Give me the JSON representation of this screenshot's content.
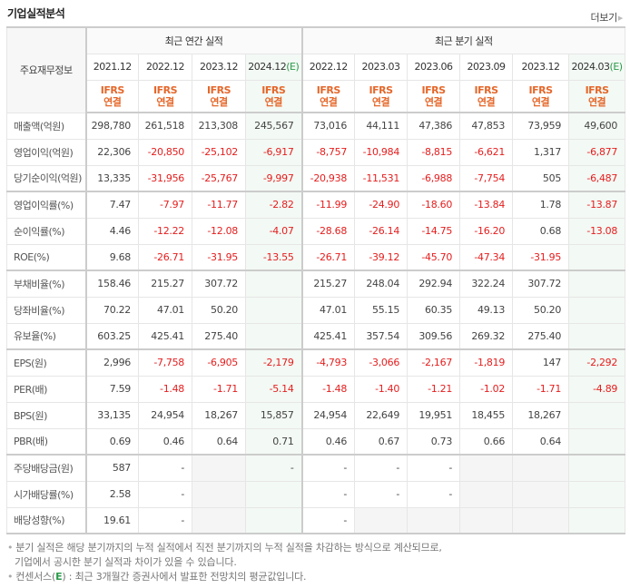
{
  "header": {
    "title": "기업실적분석",
    "more_label": "더보기",
    "more_icon": "triangle-right-icon"
  },
  "table": {
    "row_header_label": "주요재무정보",
    "groups": {
      "annual": "최근 연간 실적",
      "quarterly": "최근 분기 실적"
    },
    "annual_periods": [
      {
        "label": "2021.12",
        "estimate": false
      },
      {
        "label": "2022.12",
        "estimate": false
      },
      {
        "label": "2023.12",
        "estimate": false
      },
      {
        "label": "2024.12",
        "estimate": true,
        "estimate_mark": "(E)"
      }
    ],
    "quarterly_periods": [
      {
        "label": "2022.12",
        "estimate": false
      },
      {
        "label": "2023.03",
        "estimate": false
      },
      {
        "label": "2023.06",
        "estimate": false
      },
      {
        "label": "2023.09",
        "estimate": false
      },
      {
        "label": "2023.12",
        "estimate": false
      },
      {
        "label": "2024.03",
        "estimate": true,
        "estimate_mark": "(E)"
      }
    ],
    "accounting": {
      "line1": "IFRS",
      "line2": "연결"
    },
    "rows": [
      {
        "label": "매출액(억원)",
        "group_start": false,
        "values": [
          "298,780",
          "261,518",
          "213,308",
          "245,567",
          "73,016",
          "44,111",
          "47,386",
          "47,853",
          "73,959",
          "49,600"
        ]
      },
      {
        "label": "영업이익(억원)",
        "group_start": false,
        "values": [
          "22,306",
          "-20,850",
          "-25,102",
          "-6,917",
          "-8,757",
          "-10,984",
          "-8,815",
          "-6,621",
          "1,317",
          "-6,877"
        ]
      },
      {
        "label": "당기순이익(억원)",
        "group_start": false,
        "values": [
          "13,335",
          "-31,956",
          "-25,767",
          "-9,997",
          "-20,938",
          "-11,531",
          "-6,988",
          "-7,754",
          "505",
          "-6,487"
        ]
      },
      {
        "label": "영업이익률(%)",
        "group_start": true,
        "values": [
          "7.47",
          "-7.97",
          "-11.77",
          "-2.82",
          "-11.99",
          "-24.90",
          "-18.60",
          "-13.84",
          "1.78",
          "-13.87"
        ]
      },
      {
        "label": "순이익률(%)",
        "group_start": false,
        "values": [
          "4.46",
          "-12.22",
          "-12.08",
          "-4.07",
          "-28.68",
          "-26.14",
          "-14.75",
          "-16.20",
          "0.68",
          "-13.08"
        ]
      },
      {
        "label": "ROE(%)",
        "group_start": false,
        "values": [
          "9.68",
          "-26.71",
          "-31.95",
          "-13.55",
          "-26.71",
          "-39.12",
          "-45.70",
          "-47.34",
          "-31.95",
          ""
        ]
      },
      {
        "label": "부채비율(%)",
        "group_start": true,
        "values": [
          "158.46",
          "215.27",
          "307.72",
          "",
          "215.27",
          "248.04",
          "292.94",
          "322.24",
          "307.72",
          ""
        ]
      },
      {
        "label": "당좌비율(%)",
        "group_start": false,
        "values": [
          "70.22",
          "47.01",
          "50.20",
          "",
          "47.01",
          "55.15",
          "60.35",
          "49.13",
          "50.20",
          ""
        ]
      },
      {
        "label": "유보율(%)",
        "group_start": false,
        "values": [
          "603.25",
          "425.41",
          "275.40",
          "",
          "425.41",
          "357.54",
          "309.56",
          "269.32",
          "275.40",
          ""
        ]
      },
      {
        "label": "EPS(원)",
        "group_start": true,
        "values": [
          "2,996",
          "-7,758",
          "-6,905",
          "-2,179",
          "-4,793",
          "-3,066",
          "-2,167",
          "-1,819",
          "147",
          "-2,292"
        ]
      },
      {
        "label": "PER(배)",
        "group_start": false,
        "values": [
          "7.59",
          "-1.48",
          "-1.71",
          "-5.14",
          "-1.48",
          "-1.40",
          "-1.21",
          "-1.02",
          "-1.71",
          "-4.89"
        ]
      },
      {
        "label": "BPS(원)",
        "group_start": false,
        "values": [
          "33,135",
          "24,954",
          "18,267",
          "15,857",
          "24,954",
          "22,649",
          "19,951",
          "18,455",
          "18,267",
          ""
        ]
      },
      {
        "label": "PBR(배)",
        "group_start": false,
        "values": [
          "0.69",
          "0.46",
          "0.64",
          "0.71",
          "0.46",
          "0.67",
          "0.73",
          "0.66",
          "0.64",
          ""
        ]
      },
      {
        "label": "주당배당금(원)",
        "group_start": true,
        "values": [
          "587",
          "-",
          null,
          "-",
          "-",
          "-",
          "-",
          null,
          null,
          ""
        ]
      },
      {
        "label": "시가배당률(%)",
        "group_start": false,
        "values": [
          "2.58",
          "-",
          null,
          "",
          "-",
          "-",
          "-",
          null,
          null,
          ""
        ]
      },
      {
        "label": "배당성향(%)",
        "group_start": false,
        "values": [
          "19.61",
          "-",
          null,
          "",
          "-",
          null,
          null,
          null,
          null,
          ""
        ]
      }
    ]
  },
  "notes": [
    "분기 실적은 해당 분기까지의 누적 실적에서 직전 분기까지의 누적 실적을 차감하는 방식으로 계산되므로,",
    "기업에서 공시한 분기 실적과 차이가 있을 수 있습니다.",
    "컨센서스(",
    "E",
    ") : 최근 3개월간 증권사에서 발표한 전망치의 평균값입니다."
  ],
  "colors": {
    "negative": "#e51e1e",
    "accounting_label": "#e5672a",
    "estimate_mark": "#2a9a4a",
    "estimate_column_bg": "#f3f9f4",
    "na_cell_bg": "#f5f5f5"
  }
}
